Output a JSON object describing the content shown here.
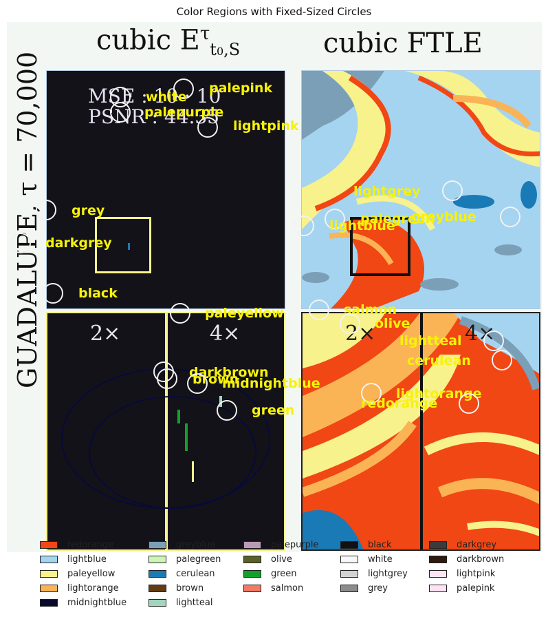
{
  "title": "Color Regions with Fixed-Sized Circles",
  "figure": {
    "heading_left_base": "cubic E",
    "heading_left_sup": "τ",
    "heading_left_sub": "t",
    "heading_left_sub2": "0",
    "heading_left_sub3": ",S",
    "heading_right": "cubic FTLE",
    "vertical_label": "GUADALUPE, τ = 70,000",
    "metric_mse": "MSE : 10 · 10",
    "metric_psnr": "PSNR : 44.35",
    "zoom_2x": "2×",
    "zoom_4x": "4×"
  },
  "colors": {
    "redorange": "#f04714",
    "lightblue": "#a4d4f0",
    "paleyellow": "#f8f28c",
    "lightorange": "#fbb455",
    "midnightblue": "#070a2a",
    "greyblue": "#7b9fb6",
    "palegreen": "#cdf5b7",
    "cerulean": "#1a7ab5",
    "brown": "#653b12",
    "lightteal": "#9fd6bd",
    "palepurple": "#b99bb6",
    "olive": "#5b5f2a",
    "green": "#13a02a",
    "salmon": "#f37b65",
    "black": "#111111",
    "white": "#f9f9f9",
    "lightgrey": "#d3d3d3",
    "grey": "#8c8c8c",
    "darkgrey": "#3b3b3b",
    "darkbrown": "#2e1a10",
    "lightpink": "#fde3f3",
    "palepink": "#fde3f3",
    "panel_dark": "#131218"
  },
  "legend": [
    {
      "label": "redorange",
      "color": "#f04714"
    },
    {
      "label": "lightblue",
      "color": "#a4d4f0"
    },
    {
      "label": "paleyellow",
      "color": "#f8f28c"
    },
    {
      "label": "lightorange",
      "color": "#fbb455"
    },
    {
      "label": "midnightblue",
      "color": "#070a2a"
    },
    {
      "label": "greyblue",
      "color": "#7b9fb6"
    },
    {
      "label": "palegreen",
      "color": "#cdf5b7"
    },
    {
      "label": "cerulean",
      "color": "#1a7ab5"
    },
    {
      "label": "brown",
      "color": "#653b12"
    },
    {
      "label": "lightteal",
      "color": "#9fd6bd"
    },
    {
      "label": "palepurple",
      "color": "#b99bb6"
    },
    {
      "label": "olive",
      "color": "#5b5f2a"
    },
    {
      "label": "green",
      "color": "#13a02a"
    },
    {
      "label": "salmon",
      "color": "#f37b65"
    },
    {
      "label": "black",
      "color": "#111111"
    },
    {
      "label": "white",
      "color": "#f9f9f9"
    },
    {
      "label": "lightgrey",
      "color": "#d3d3d3"
    },
    {
      "label": "grey",
      "color": "#8c8c8c"
    },
    {
      "label": "darkgrey",
      "color": "#3b3b3b"
    },
    {
      "label": "darkbrown",
      "color": "#2e1a10"
    },
    {
      "label": "lightpink",
      "color": "#fde3f3"
    },
    {
      "label": "palepink",
      "color": "#fde3f3"
    }
  ],
  "annotations": [
    {
      "label": "palepink"
    },
    {
      "label": "white"
    },
    {
      "label": "palepurple"
    },
    {
      "label": "lightpink"
    },
    {
      "label": "grey"
    },
    {
      "label": "darkgrey"
    },
    {
      "label": "black"
    },
    {
      "label": "paleyellow"
    },
    {
      "label": "darkbrown"
    },
    {
      "label": "brown"
    },
    {
      "label": "midnightblue"
    },
    {
      "label": "green"
    },
    {
      "label": "lightgrey"
    },
    {
      "label": "palegreen"
    },
    {
      "label": "greyblue"
    },
    {
      "label": "lightblue"
    },
    {
      "label": "salmon"
    },
    {
      "label": "olive"
    },
    {
      "label": "lightteal"
    },
    {
      "label": "cerulean"
    },
    {
      "label": "lightorange"
    },
    {
      "label": "redorange"
    }
  ]
}
